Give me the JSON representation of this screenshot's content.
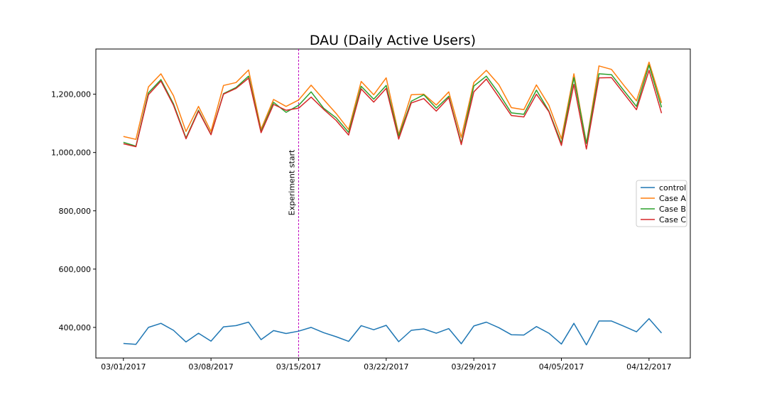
{
  "chart_data": {
    "type": "line",
    "title": "DAU (Daily Active Users)",
    "xlabel": "",
    "ylabel": "",
    "ylim": [
      295000,
      1355000
    ],
    "xlim": [
      -2.2,
      45.3
    ],
    "grid": false,
    "legend_position": "center-right",
    "x_ticks": [
      {
        "index": 0,
        "label": "03/01/2017"
      },
      {
        "index": 7,
        "label": "03/08/2017"
      },
      {
        "index": 14,
        "label": "03/15/2017"
      },
      {
        "index": 21,
        "label": "03/22/2017"
      },
      {
        "index": 28,
        "label": "03/29/2017"
      },
      {
        "index": 35,
        "label": "04/05/2017"
      },
      {
        "index": 42,
        "label": "04/12/2017"
      }
    ],
    "y_ticks": [
      {
        "value": 400000,
        "label": "400,000"
      },
      {
        "value": 600000,
        "label": "600,000"
      },
      {
        "value": 800000,
        "label": "800,000"
      },
      {
        "value": 1000000,
        "label": "1,000,000"
      },
      {
        "value": 1200000,
        "label": "1,200,000"
      }
    ],
    "annotation": {
      "index": 14,
      "label": "Experiment start",
      "color": "#bf00bf"
    },
    "series": [
      {
        "name": "control",
        "color": "#1f77b4",
        "values": [
          345000,
          342000,
          400000,
          414000,
          390000,
          350000,
          380000,
          353000,
          402000,
          406000,
          418000,
          358000,
          389000,
          379000,
          387000,
          400000,
          382000,
          368000,
          352000,
          406000,
          392000,
          407000,
          351000,
          390000,
          395000,
          380000,
          396000,
          344000,
          405000,
          418000,
          399000,
          375000,
          374000,
          403000,
          380000,
          343000,
          414000,
          340000,
          422000,
          422000,
          404000,
          385000,
          430000,
          381000
        ]
      },
      {
        "name": "Case A",
        "color": "#ff7f0e",
        "values": [
          1055000,
          1045000,
          1225000,
          1270000,
          1195000,
          1072000,
          1158000,
          1072000,
          1230000,
          1240000,
          1283000,
          1080000,
          1182000,
          1158000,
          1180000,
          1231000,
          1182000,
          1134000,
          1079000,
          1244000,
          1198000,
          1256000,
          1062000,
          1198000,
          1200000,
          1163000,
          1208000,
          1052000,
          1240000,
          1282000,
          1233000,
          1154000,
          1147000,
          1232000,
          1162000,
          1047000,
          1270000,
          1032000,
          1297000,
          1285000,
          1230000,
          1177000,
          1310000,
          1170000
        ]
      },
      {
        "name": "Case B",
        "color": "#2ca02c",
        "values": [
          1035000,
          1022000,
          1205000,
          1250000,
          1167000,
          1050000,
          1145000,
          1062000,
          1202000,
          1223000,
          1262000,
          1072000,
          1172000,
          1138000,
          1162000,
          1208000,
          1152000,
          1119000,
          1069000,
          1227000,
          1183000,
          1230000,
          1056000,
          1176000,
          1198000,
          1152000,
          1193000,
          1032000,
          1228000,
          1262000,
          1203000,
          1136000,
          1131000,
          1214000,
          1142000,
          1032000,
          1257000,
          1031000,
          1270000,
          1267000,
          1212000,
          1158000,
          1300000,
          1155000
        ]
      },
      {
        "name": "Case C",
        "color": "#d62728",
        "values": [
          1030000,
          1020000,
          1198000,
          1245000,
          1162000,
          1047000,
          1142000,
          1061000,
          1200000,
          1220000,
          1255000,
          1068000,
          1165000,
          1145000,
          1152000,
          1190000,
          1148000,
          1110000,
          1060000,
          1218000,
          1173000,
          1220000,
          1046000,
          1170000,
          1185000,
          1142000,
          1188000,
          1027000,
          1208000,
          1252000,
          1190000,
          1127000,
          1122000,
          1200000,
          1140000,
          1024000,
          1234000,
          1012000,
          1256000,
          1257000,
          1202000,
          1147000,
          1282000,
          1135000
        ]
      }
    ]
  }
}
